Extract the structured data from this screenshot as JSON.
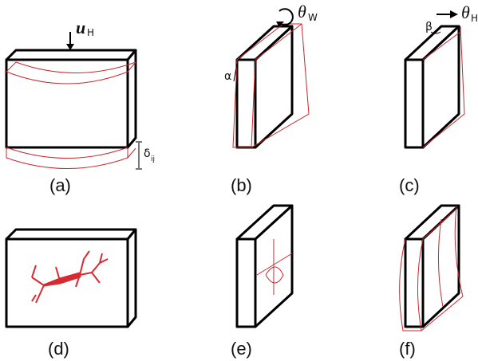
{
  "panels": [
    {
      "label": "(a)"
    },
    {
      "label": "(b)"
    },
    {
      "label": "(c)"
    },
    {
      "label": "(d)"
    },
    {
      "label": "(e)"
    },
    {
      "label": "(f)"
    }
  ],
  "annotations": {
    "u_h": {
      "symbol": "u",
      "subscript": "H"
    },
    "theta_w": {
      "symbol": "θ",
      "subscript": "W"
    },
    "theta_h": {
      "symbol": "θ",
      "subscript": "H"
    },
    "alpha": "α",
    "beta": "β",
    "delta": {
      "symbol": "δ",
      "subscript": "ij"
    }
  }
}
